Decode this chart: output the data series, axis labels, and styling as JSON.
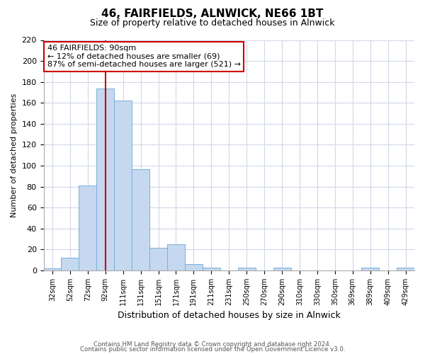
{
  "title": "46, FAIRFIELDS, ALNWICK, NE66 1BT",
  "subtitle": "Size of property relative to detached houses in Alnwick",
  "xlabel": "Distribution of detached houses by size in Alnwick",
  "ylabel": "Number of detached properties",
  "bin_labels": [
    "32sqm",
    "52sqm",
    "72sqm",
    "92sqm",
    "111sqm",
    "131sqm",
    "151sqm",
    "171sqm",
    "191sqm",
    "211sqm",
    "231sqm",
    "250sqm",
    "270sqm",
    "290sqm",
    "310sqm",
    "330sqm",
    "350sqm",
    "369sqm",
    "389sqm",
    "409sqm",
    "429sqm"
  ],
  "bar_heights": [
    2,
    12,
    81,
    174,
    162,
    97,
    22,
    25,
    6,
    3,
    0,
    3,
    0,
    3,
    0,
    0,
    0,
    0,
    3,
    0,
    3
  ],
  "bar_color": "#c5d8f0",
  "bar_edgecolor": "#7ab0d8",
  "vline_x_index": 3,
  "vline_color": "#cc0000",
  "ylim": [
    0,
    220
  ],
  "yticks": [
    0,
    20,
    40,
    60,
    80,
    100,
    120,
    140,
    160,
    180,
    200,
    220
  ],
  "annotation_title": "46 FAIRFIELDS: 90sqm",
  "annotation_line1": "← 12% of detached houses are smaller (69)",
  "annotation_line2": "87% of semi-detached houses are larger (521) →",
  "annotation_box_color": "#ffffff",
  "annotation_box_edgecolor": "#cc0000",
  "footer_line1": "Contains HM Land Registry data © Crown copyright and database right 2024.",
  "footer_line2": "Contains public sector information licensed under the Open Government Licence v3.0.",
  "background_color": "#ffffff",
  "grid_color": "#d0d8e8"
}
